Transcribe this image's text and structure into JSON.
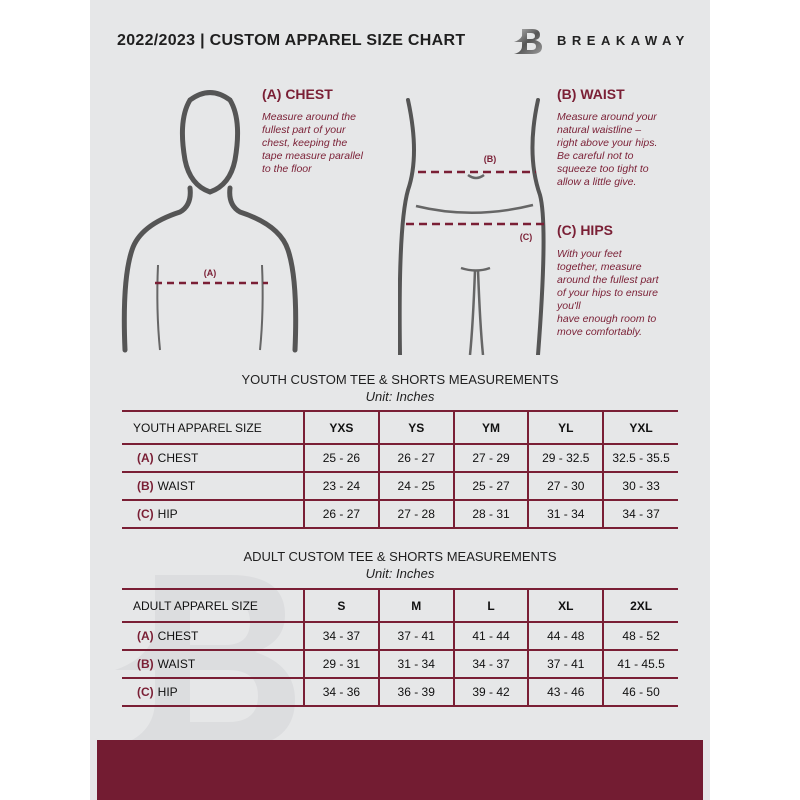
{
  "header": {
    "title": "2022/2023  |  CUSTOM APPAREL SIZE CHART",
    "brand": "BREAKAWAY",
    "logo_letter": "B"
  },
  "colors": {
    "accent": "#7a1f35",
    "banner": "#731c32",
    "background": "#e6e7e8"
  },
  "chest": {
    "heading": "(A) CHEST",
    "label": "(A)",
    "lines": [
      "Measure around the",
      "fullest part of your",
      "chest, keeping the",
      "tape measure parallel",
      "to the floor"
    ]
  },
  "waist": {
    "heading": "(B) WAIST",
    "label": "(B)",
    "lines": [
      "Measure around your",
      "natural waistline –",
      "right above your hips.",
      "Be careful not to",
      "squeeze too tight to",
      "allow a little give."
    ]
  },
  "hips": {
    "heading": "(C) HIPS",
    "label": "(C)",
    "lines": [
      "With your feet",
      "together, measure",
      "around the fullest part",
      "of your hips to ensure",
      "you'll",
      "have enough room to",
      "move comfortably."
    ]
  },
  "tables": [
    {
      "title": "YOUTH CUSTOM TEE & SHORTS MEASUREMENTS",
      "unit": "Unit: Inches",
      "size_header": "YOUTH APPAREL SIZE",
      "sizes": [
        "YXS",
        "YS",
        "YM",
        "YL",
        "YXL"
      ],
      "rows": [
        {
          "letter": "(A)",
          "label": "CHEST",
          "values": [
            "25 - 26",
            "26 - 27",
            "27 - 29",
            "29 - 32.5",
            "32.5 - 35.5"
          ]
        },
        {
          "letter": "(B)",
          "label": "WAIST",
          "values": [
            "23 - 24",
            "24 - 25",
            "25 - 27",
            "27 - 30",
            "30 - 33"
          ]
        },
        {
          "letter": "(C)",
          "label": "HIP",
          "values": [
            "26 - 27",
            "27 - 28",
            "28 - 31",
            "31 - 34",
            "34 - 37"
          ]
        }
      ]
    },
    {
      "title": "ADULT CUSTOM TEE & SHORTS MEASUREMENTS",
      "unit": "Unit: Inches",
      "size_header": "ADULT APPAREL SIZE",
      "sizes": [
        "S",
        "M",
        "L",
        "XL",
        "2XL"
      ],
      "rows": [
        {
          "letter": "(A)",
          "label": "CHEST",
          "values": [
            "34 - 37",
            "37 - 41",
            "41 - 44",
            "44 - 48",
            "48 - 52"
          ]
        },
        {
          "letter": "(B)",
          "label": "WAIST",
          "values": [
            "29 - 31",
            "31 - 34",
            "34 - 37",
            "37 - 41",
            "41 - 45.5"
          ]
        },
        {
          "letter": "(C)",
          "label": "HIP",
          "values": [
            "34 - 36",
            "36 - 39",
            "39 - 42",
            "43 - 46",
            "46 - 50"
          ]
        }
      ]
    }
  ]
}
